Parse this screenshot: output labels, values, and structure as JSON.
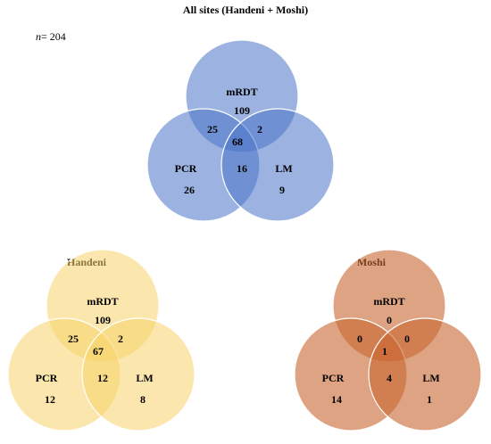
{
  "note": {
    "variable": "n",
    "text": "= 204"
  },
  "panels": [
    {
      "title": "All sites (Handeni + Moshi)",
      "sets": [
        "mRDT",
        "PCR",
        "LM"
      ],
      "regions": {
        "mrdt_only": "109",
        "mrdt_pcr": "25",
        "mrdt_lm": "2",
        "all": "68",
        "pcr_only": "26",
        "pcr_lm": "16",
        "lm_only": "9"
      }
    },
    {
      "title": "Handeni",
      "sets": [
        "mRDT",
        "PCR",
        "LM"
      ],
      "regions": {
        "mrdt_only": "109",
        "mrdt_pcr": "25",
        "mrdt_lm": "2",
        "all": "67",
        "pcr_only": "12",
        "pcr_lm": "12",
        "lm_only": "8"
      }
    },
    {
      "title": "Moshi",
      "sets": [
        "mRDT",
        "PCR",
        "LM"
      ],
      "regions": {
        "mrdt_only": "0",
        "mrdt_pcr": "0",
        "mrdt_lm": "0",
        "all": "1",
        "pcr_only": "14",
        "pcr_lm": "4",
        "lm_only": "1"
      }
    }
  ]
}
